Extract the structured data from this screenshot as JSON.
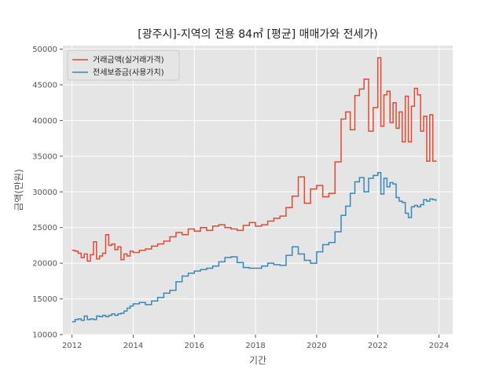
{
  "chart_data": {
    "type": "line",
    "step": true,
    "title": "[광주시]-지역의 전용 84㎡ [평균] 매매가와 전세가)",
    "xlabel": "기간",
    "ylabel": "금액(만원)",
    "xlim": [
      2011.7,
      2024.45
    ],
    "ylim": [
      10000,
      50500
    ],
    "xticks": [
      2012,
      2014,
      2016,
      2018,
      2020,
      2022,
      2024
    ],
    "yticks": [
      10000,
      15000,
      20000,
      25000,
      30000,
      35000,
      40000,
      45000,
      50000
    ],
    "grid": true,
    "legend_position": "top-left",
    "series": [
      {
        "name": "거래금액(실거래가격)",
        "color": "#e24a33",
        "x": [
          2012.0,
          2012.1,
          2012.2,
          2012.3,
          2012.4,
          2012.5,
          2012.6,
          2012.7,
          2012.8,
          2012.9,
          2013.0,
          2013.1,
          2013.2,
          2013.3,
          2013.4,
          2013.5,
          2013.6,
          2013.7,
          2013.8,
          2013.9,
          2014.0,
          2014.2,
          2014.4,
          2014.6,
          2014.8,
          2015.0,
          2015.2,
          2015.4,
          2015.6,
          2015.8,
          2016.0,
          2016.2,
          2016.4,
          2016.6,
          2016.8,
          2017.0,
          2017.2,
          2017.4,
          2017.6,
          2017.8,
          2018.0,
          2018.2,
          2018.4,
          2018.6,
          2018.8,
          2019.0,
          2019.2,
          2019.4,
          2019.6,
          2019.8,
          2020.0,
          2020.2,
          2020.4,
          2020.6,
          2020.8,
          2020.95,
          2021.1,
          2021.25,
          2021.4,
          2021.55,
          2021.7,
          2021.85,
          2022.0,
          2022.1,
          2022.2,
          2022.3,
          2022.4,
          2022.5,
          2022.6,
          2022.7,
          2022.8,
          2022.9,
          2023.0,
          2023.1,
          2023.2,
          2023.3,
          2023.4,
          2023.5,
          2023.6,
          2023.7,
          2023.8,
          2023.9
        ],
        "y": [
          21800,
          21700,
          21400,
          20800,
          21300,
          20300,
          21200,
          23000,
          20600,
          21000,
          21400,
          24000,
          22500,
          22700,
          21900,
          22300,
          20500,
          21300,
          21000,
          21700,
          21500,
          21800,
          22000,
          22400,
          22700,
          23100,
          23700,
          24300,
          24000,
          24800,
          24500,
          25000,
          24600,
          25200,
          25400,
          25000,
          24800,
          24600,
          25300,
          25700,
          25200,
          25400,
          25900,
          26300,
          26600,
          27800,
          29400,
          32100,
          28400,
          30400,
          30900,
          29300,
          29800,
          34200,
          40200,
          41200,
          38700,
          43500,
          44400,
          45800,
          38500,
          41800,
          48800,
          39200,
          43600,
          44100,
          39700,
          42500,
          38900,
          41200,
          37000,
          43400,
          37000,
          42000,
          44500,
          43600,
          38500,
          40600,
          34300,
          40800,
          34300,
          34400
        ]
      },
      {
        "name": "전세보증금(사용가치)",
        "color": "#348abd",
        "x": [
          2012.0,
          2012.1,
          2012.2,
          2012.3,
          2012.4,
          2012.5,
          2012.6,
          2012.7,
          2012.8,
          2012.9,
          2013.0,
          2013.1,
          2013.2,
          2013.3,
          2013.4,
          2013.5,
          2013.6,
          2013.7,
          2013.8,
          2013.9,
          2014.0,
          2014.2,
          2014.4,
          2014.6,
          2014.8,
          2015.0,
          2015.2,
          2015.4,
          2015.6,
          2015.8,
          2016.0,
          2016.2,
          2016.4,
          2016.6,
          2016.8,
          2017.0,
          2017.2,
          2017.4,
          2017.6,
          2017.8,
          2018.0,
          2018.2,
          2018.4,
          2018.6,
          2018.8,
          2019.0,
          2019.2,
          2019.4,
          2019.6,
          2019.8,
          2020.0,
          2020.2,
          2020.4,
          2020.6,
          2020.8,
          2020.95,
          2021.1,
          2021.25,
          2021.4,
          2021.55,
          2021.7,
          2021.85,
          2022.0,
          2022.1,
          2022.2,
          2022.3,
          2022.4,
          2022.5,
          2022.6,
          2022.7,
          2022.8,
          2022.9,
          2023.0,
          2023.1,
          2023.2,
          2023.3,
          2023.4,
          2023.5,
          2023.6,
          2023.7,
          2023.8,
          2023.9
        ],
        "y": [
          11800,
          12100,
          12200,
          12000,
          12600,
          12100,
          12200,
          12100,
          12600,
          12500,
          12700,
          12500,
          12700,
          12900,
          12700,
          12900,
          13000,
          13300,
          13700,
          14000,
          14300,
          14500,
          14200,
          14700,
          15200,
          15800,
          16200,
          17400,
          18200,
          18600,
          18900,
          19100,
          19300,
          19600,
          20200,
          20800,
          20900,
          20100,
          19400,
          19300,
          19300,
          19600,
          20000,
          19800,
          19700,
          21100,
          22300,
          21300,
          20400,
          20000,
          21600,
          22600,
          22900,
          24400,
          26700,
          28000,
          29800,
          31400,
          32000,
          30000,
          31900,
          32300,
          32700,
          29700,
          31900,
          30700,
          31300,
          31100,
          29200,
          28700,
          28500,
          27000,
          26400,
          27900,
          28100,
          27900,
          28200,
          28900,
          28700,
          29000,
          28900,
          28700
        ]
      }
    ]
  }
}
